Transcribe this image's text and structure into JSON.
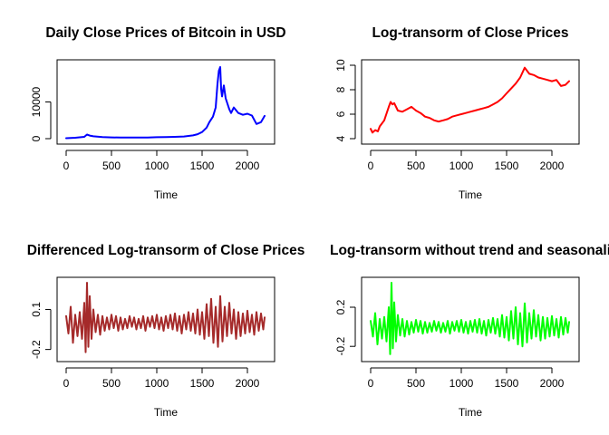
{
  "chart_data": [
    {
      "type": "line",
      "title": "Daily Close Prices of Bitcoin in USD",
      "xlabel": "Time",
      "ylabel": "",
      "xlim": [
        0,
        2200
      ],
      "ylim": [
        0,
        20000
      ],
      "x_ticks": [
        0,
        500,
        1000,
        1500,
        2000
      ],
      "y_ticks": [
        0,
        10000
      ],
      "color": "#0000ff",
      "series": [
        {
          "x": [
            0,
            100,
            200,
            230,
            260,
            300,
            400,
            500,
            600,
            700,
            800,
            900,
            1000,
            1100,
            1200,
            1300,
            1400,
            1450,
            1500,
            1550,
            1580,
            1620,
            1650,
            1670,
            1685,
            1700,
            1710,
            1720,
            1740,
            1760,
            1780,
            1800,
            1820,
            1850,
            1900,
            1950,
            2000,
            2050,
            2100,
            2150,
            2190
          ],
          "y": [
            120,
            250,
            500,
            1100,
            850,
            650,
            450,
            350,
            300,
            300,
            300,
            320,
            400,
            450,
            500,
            600,
            900,
            1200,
            1800,
            3000,
            4500,
            6000,
            8500,
            15000,
            18500,
            19500,
            13500,
            11500,
            14500,
            11000,
            9500,
            8000,
            7000,
            8500,
            7000,
            6500,
            6800,
            6300,
            4000,
            4500,
            6200
          ]
        }
      ]
    },
    {
      "type": "line",
      "title": "Log-transorm of Close Prices",
      "xlabel": "Time",
      "ylabel": "",
      "xlim": [
        0,
        2200
      ],
      "ylim": [
        4,
        10
      ],
      "x_ticks": [
        0,
        500,
        1000,
        1500,
        2000
      ],
      "y_ticks": [
        4,
        6,
        8,
        10
      ],
      "color": "#ff0000",
      "series": [
        {
          "x": [
            0,
            20,
            50,
            80,
            100,
            150,
            200,
            220,
            240,
            260,
            300,
            350,
            400,
            450,
            500,
            550,
            600,
            650,
            700,
            750,
            800,
            850,
            900,
            950,
            1000,
            1050,
            1100,
            1150,
            1200,
            1250,
            1300,
            1350,
            1400,
            1450,
            1500,
            1550,
            1600,
            1650,
            1700,
            1720,
            1750,
            1800,
            1850,
            1900,
            1950,
            2000,
            2050,
            2100,
            2150,
            2190
          ],
          "y": [
            4.8,
            4.5,
            4.7,
            4.6,
            5.0,
            5.5,
            6.6,
            7.0,
            6.8,
            6.9,
            6.3,
            6.2,
            6.4,
            6.6,
            6.3,
            6.1,
            5.8,
            5.7,
            5.5,
            5.4,
            5.5,
            5.6,
            5.8,
            5.9,
            6.0,
            6.1,
            6.2,
            6.3,
            6.4,
            6.5,
            6.6,
            6.8,
            7.0,
            7.3,
            7.7,
            8.1,
            8.5,
            9.0,
            9.8,
            9.6,
            9.3,
            9.2,
            9.0,
            8.9,
            8.8,
            8.7,
            8.8,
            8.3,
            8.4,
            8.7
          ]
        }
      ]
    },
    {
      "type": "line",
      "title": "Differenced Log-transorm of Close Prices",
      "xlabel": "Time",
      "ylabel": "",
      "xlim": [
        0,
        2200
      ],
      "ylim": [
        -0.25,
        0.3
      ],
      "x_ticks": [
        0,
        500,
        1000,
        1500,
        2000
      ],
      "y_ticks": [
        -0.2,
        0.1
      ],
      "y_tick_labels": [
        "-0.2",
        "0.1"
      ],
      "color": "#a52a2a",
      "series": [
        {
          "x": [
            0,
            25,
            50,
            75,
            100,
            125,
            150,
            175,
            200,
            215,
            230,
            245,
            260,
            280,
            300,
            325,
            350,
            375,
            400,
            425,
            450,
            475,
            500,
            525,
            550,
            575,
            600,
            625,
            650,
            675,
            700,
            725,
            750,
            775,
            800,
            825,
            850,
            875,
            900,
            925,
            950,
            975,
            1000,
            1025,
            1050,
            1075,
            1100,
            1125,
            1150,
            1175,
            1200,
            1225,
            1250,
            1275,
            1300,
            1325,
            1350,
            1375,
            1400,
            1425,
            1450,
            1475,
            1500,
            1525,
            1550,
            1575,
            1600,
            1625,
            1650,
            1675,
            1700,
            1725,
            1750,
            1775,
            1800,
            1825,
            1850,
            1875,
            1900,
            1925,
            1950,
            1975,
            2000,
            2025,
            2050,
            2075,
            2100,
            2125,
            2150,
            2175,
            2190
          ],
          "y": [
            0.05,
            -0.08,
            0.12,
            -0.15,
            0.06,
            -0.1,
            0.08,
            -0.12,
            0.15,
            -0.22,
            0.3,
            -0.18,
            0.2,
            -0.12,
            0.1,
            -0.07,
            0.06,
            -0.09,
            0.05,
            -0.06,
            0.04,
            -0.05,
            0.06,
            -0.04,
            0.05,
            -0.06,
            0.04,
            -0.05,
            0.03,
            -0.04,
            0.05,
            -0.03,
            0.04,
            -0.05,
            0.03,
            -0.04,
            0.05,
            -0.06,
            0.04,
            -0.03,
            0.05,
            -0.04,
            0.06,
            -0.05,
            0.04,
            -0.06,
            0.05,
            -0.04,
            0.06,
            -0.05,
            0.07,
            -0.06,
            0.05,
            -0.08,
            0.06,
            -0.05,
            0.08,
            -0.06,
            0.07,
            -0.08,
            0.1,
            -0.09,
            0.08,
            -0.12,
            0.14,
            -0.1,
            0.18,
            -0.15,
            0.12,
            -0.18,
            0.2,
            -0.14,
            0.12,
            -0.1,
            0.15,
            -0.08,
            0.1,
            -0.12,
            0.08,
            -0.1,
            0.07,
            -0.08,
            0.09,
            -0.07,
            0.06,
            -0.09,
            0.08,
            -0.06,
            0.07,
            -0.05,
            0.04
          ]
        }
      ]
    },
    {
      "type": "line",
      "title": "Log-transorm without trend and seasonali",
      "xlabel": "Time",
      "ylabel": "",
      "xlim": [
        0,
        2200
      ],
      "ylim": [
        -0.3,
        0.45
      ],
      "x_ticks": [
        0,
        500,
        1000,
        1500,
        2000
      ],
      "y_ticks": [
        -0.2,
        0.2
      ],
      "y_tick_labels": [
        "-0.2",
        "0.2"
      ],
      "color": "#00ff00",
      "series": [
        {
          "x": [
            0,
            25,
            50,
            75,
            100,
            125,
            150,
            175,
            200,
            215,
            230,
            245,
            260,
            280,
            300,
            325,
            350,
            375,
            400,
            425,
            450,
            475,
            500,
            525,
            550,
            575,
            600,
            625,
            650,
            675,
            700,
            725,
            750,
            775,
            800,
            825,
            850,
            875,
            900,
            925,
            950,
            975,
            1000,
            1025,
            1050,
            1075,
            1100,
            1125,
            1150,
            1175,
            1200,
            1225,
            1250,
            1275,
            1300,
            1325,
            1350,
            1375,
            1400,
            1425,
            1450,
            1475,
            1500,
            1525,
            1550,
            1575,
            1600,
            1625,
            1650,
            1675,
            1700,
            1725,
            1750,
            1775,
            1800,
            1825,
            1850,
            1875,
            1900,
            1925,
            1950,
            1975,
            2000,
            2025,
            2050,
            2075,
            2100,
            2125,
            2150,
            2175,
            2190
          ],
          "y": [
            0.06,
            -0.1,
            0.14,
            -0.18,
            0.08,
            -0.12,
            0.1,
            -0.15,
            0.2,
            -0.28,
            0.45,
            -0.22,
            0.25,
            -0.15,
            0.12,
            -0.09,
            0.08,
            -0.1,
            0.06,
            -0.08,
            0.05,
            -0.06,
            0.07,
            -0.05,
            0.06,
            -0.07,
            0.05,
            -0.06,
            0.04,
            -0.05,
            0.06,
            -0.04,
            0.05,
            -0.06,
            0.04,
            -0.05,
            0.06,
            -0.07,
            0.05,
            -0.04,
            0.06,
            -0.05,
            0.07,
            -0.06,
            0.05,
            -0.07,
            0.06,
            -0.05,
            0.07,
            -0.06,
            0.08,
            -0.07,
            0.06,
            -0.09,
            0.07,
            -0.06,
            0.09,
            -0.07,
            0.08,
            -0.1,
            0.12,
            -0.11,
            0.1,
            -0.14,
            0.16,
            -0.12,
            0.2,
            -0.18,
            0.14,
            -0.2,
            0.24,
            -0.16,
            0.14,
            -0.12,
            0.17,
            -0.1,
            0.12,
            -0.14,
            0.1,
            -0.12,
            0.09,
            -0.1,
            0.11,
            -0.09,
            0.08,
            -0.11,
            0.1,
            -0.08,
            0.09,
            -0.06,
            0.05
          ]
        }
      ]
    }
  ]
}
